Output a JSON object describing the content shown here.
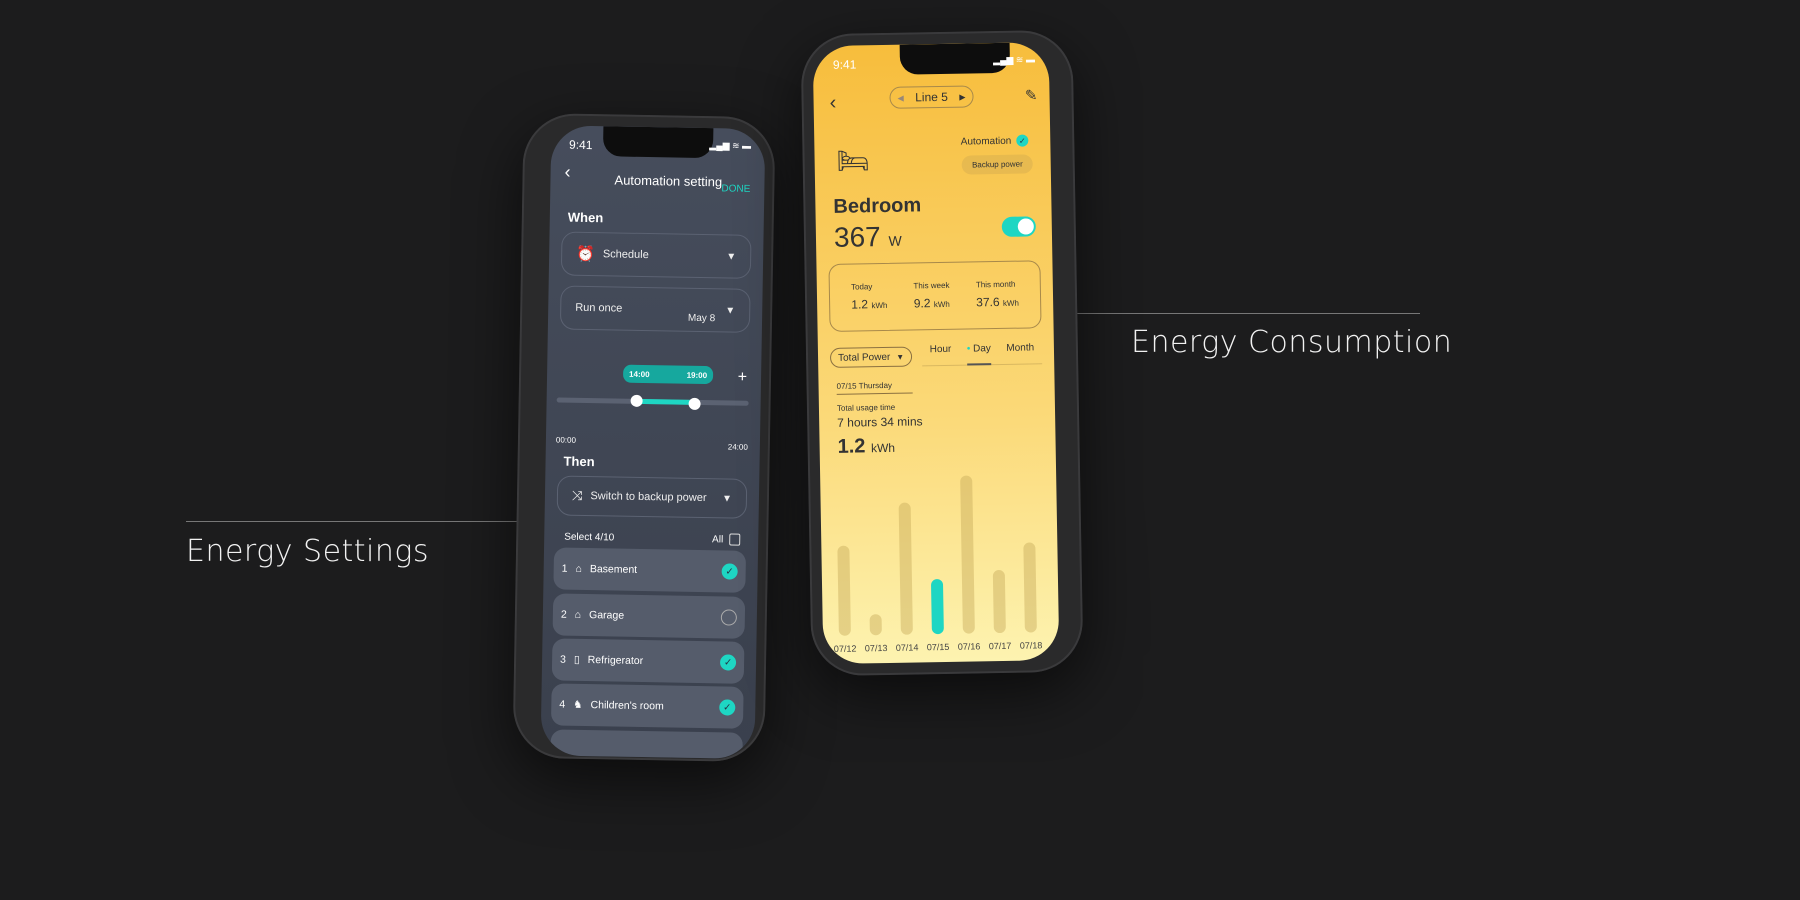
{
  "captions": {
    "left": "Energy Settings",
    "right": "Energy Consumption"
  },
  "left_phone": {
    "time": "9:41",
    "title": "Automation setting",
    "done": "DONE",
    "when": "When",
    "trigger": "Schedule",
    "repeat": "Run once",
    "date": "May 8",
    "range_start": "14:00",
    "range_end": "19:00",
    "axis_start": "00:00",
    "axis_end": "24:00",
    "then": "Then",
    "action": "Switch to backup power",
    "select": "Select 4/10",
    "all": "All",
    "items": [
      {
        "num": "1",
        "label": "Basement",
        "checked": true,
        "icon": "house-icon"
      },
      {
        "num": "2",
        "label": "Garage",
        "checked": false,
        "icon": "garage-icon"
      },
      {
        "num": "3",
        "label": "Refrigerator",
        "checked": true,
        "icon": "fridge-icon"
      },
      {
        "num": "4",
        "label": "Children's room",
        "checked": true,
        "icon": "rocking-horse-icon"
      }
    ],
    "accent": "#1ed6c3"
  },
  "right_phone": {
    "time": "9:41",
    "line": "Line 5",
    "automation": "Automation",
    "backup": "Backup power",
    "room": "Bedroom",
    "power": "367",
    "power_unit": "W",
    "toggle_on": true,
    "stats": [
      {
        "label": "Today",
        "value": "1.2",
        "unit": "kWh"
      },
      {
        "label": "This week",
        "value": "9.2",
        "unit": "kWh"
      },
      {
        "label": "This month",
        "value": "37.6",
        "unit": "kWh"
      }
    ],
    "filter": "Total Power",
    "tabs": [
      "Hour",
      "Day",
      "Month"
    ],
    "active_tab": "Day",
    "date": "07/15 Thursday",
    "usage_label": "Total usage time",
    "usage": "7 hours 34 mins",
    "energy": "1.2",
    "energy_unit": "kWh"
  },
  "chart_data": {
    "type": "bar",
    "categories": [
      "07/12",
      "07/13",
      "07/14",
      "07/15",
      "07/16",
      "07/17",
      "07/18"
    ],
    "values": [
      90,
      21,
      132,
      55,
      158,
      63,
      90
    ],
    "highlight": "07/15",
    "highlight_color": "#1ed6c3"
  }
}
